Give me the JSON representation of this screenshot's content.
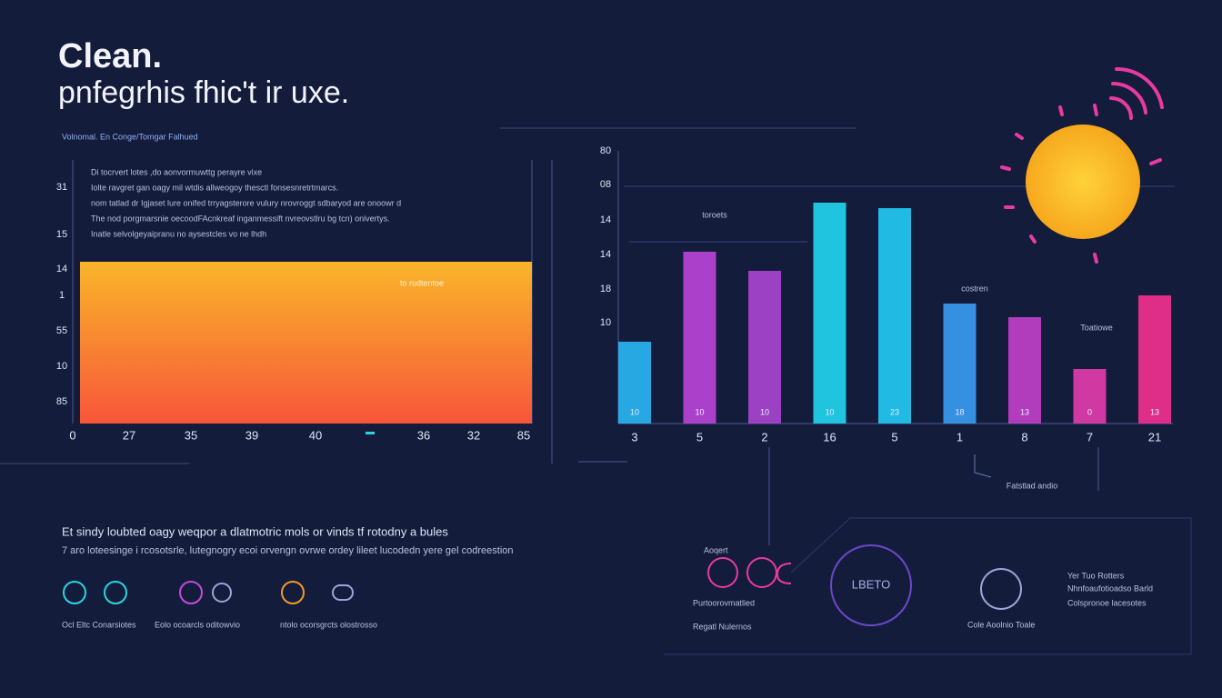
{
  "header": {
    "title": "Clean.",
    "subtitle": "pnfegrhis fhic't ir uxe.",
    "caption": "Volnomal. En Conge/Tomgar Falhued"
  },
  "left_panel": {
    "lines": [
      "Di tocrvert lotes ,do aonvormuwttg perayre vixe",
      "Iolte ravgret gan oagy mil wtdis allweogoy thesctl fonsesnretrtmarcs.",
      "nom tatlad dr Igjaset lure onifed trryagsterore vulury nrovroggt sdbaryod are onoowr d",
      "The nod porgmarsnie oecoodFAcnkreaf inganmessift nvreovstlru bg tcn) onivertys.",
      "Inatle selvolgeyaipranu no aysestcles vo ne lhdh"
    ],
    "y_labels": [
      "31",
      "15",
      "14",
      "1",
      "55",
      "10",
      "85"
    ],
    "x_labels": [
      "0",
      "27",
      "35",
      "39",
      "40",
      "36",
      "32",
      "85"
    ],
    "note": "to rudtentoe"
  },
  "chart_data": {
    "type": "bar",
    "categories": [
      "3",
      "5",
      "2",
      "16",
      "5",
      "1",
      "8",
      "7",
      "21"
    ],
    "values": [
      30,
      63,
      56,
      81,
      79,
      44,
      39,
      20,
      47
    ],
    "colors": [
      "#2ab4f2",
      "#b844d8",
      "#a844d0",
      "#22d2ee",
      "#22c8f2",
      "#3a9af0",
      "#c040c8",
      "#e03caa",
      "#f0308e"
    ],
    "ylim": [
      0,
      100
    ],
    "y_labels": [
      "80",
      "08",
      "14",
      "14",
      "18",
      "10"
    ],
    "bar_labels": [
      "10",
      "10",
      "10",
      "10",
      "23",
      "18",
      "13",
      "0",
      "13"
    ],
    "annotations": [
      "toroets",
      "costren",
      "Toatiowe",
      "Fatstlad andio"
    ]
  },
  "footer": {
    "headline": "Et sindy loubted oagy weqpor a dlatmotric mols or vinds tf rotodny a bules",
    "text": "7 aro loteesinge i rcosotsrle, lutegnogry ecoi orvengn ovrwe ordey lileet lucodedn yere gel codreestion",
    "captions": [
      "Ocl Eltc Conarsiotes",
      "Eolo ocoarcls oditowvio",
      "ntolo ocorsgrcts olostrosso"
    ],
    "right": {
      "label": "Aoqert",
      "sub": "Purtoorovmatlied",
      "legend": "Regatl Nulernos",
      "circle": "LBETO",
      "caption": "Cole Aoolnio Toale",
      "title": "Yer Tuo Rotters",
      "title2": "Nhnfoaufotioadso Barld",
      "body": "Colspronoe lacesotes"
    }
  }
}
